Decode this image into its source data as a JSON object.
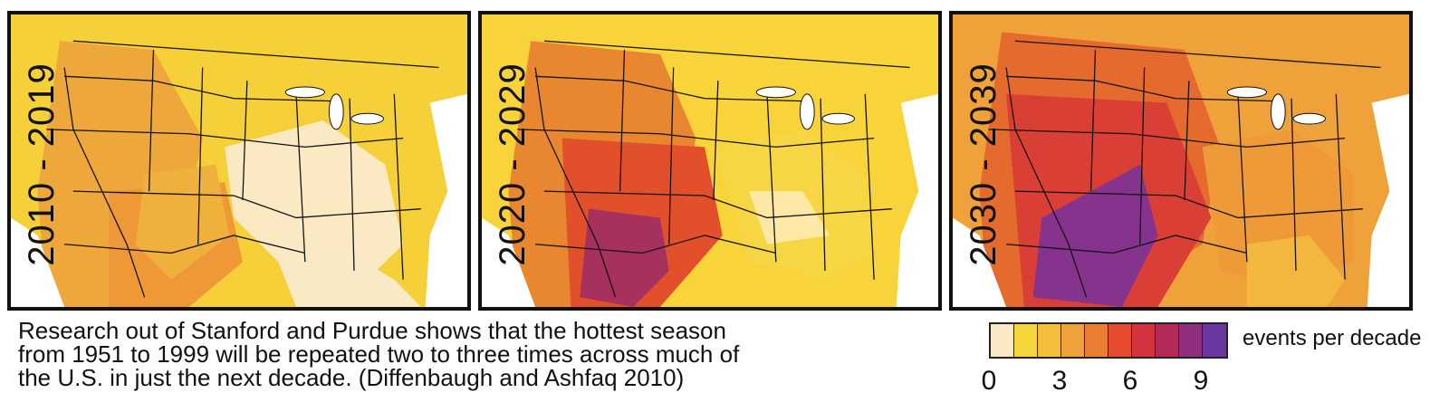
{
  "panels": [
    {
      "label": "2010 - 2019",
      "base": "#f6d039",
      "west": "#eea73b",
      "southwest": "#ee9838",
      "southeast": "#fbe9c3",
      "core": "#f0b03c",
      "coast": "#f9e9c4"
    },
    {
      "label": "2020 - 2029",
      "base": "#f8d33a",
      "west": "#e8872f",
      "southwest": "#e2502b",
      "southeast": "#f6d642",
      "core": "#a6315f",
      "coast": "#fde8a6"
    },
    {
      "label": "2030 - 2039",
      "base": "#f0a23a",
      "west": "#e46a2d",
      "southwest": "#d93f34",
      "southeast": "#ee9a38",
      "core": "#86338e",
      "coast": "#f4b73e"
    }
  ],
  "caption": {
    "line1": "Research out of Stanford and Purdue shows that the hottest season",
    "line2": "from 1951 to 1999 will be repeated two to three times across much of",
    "line3": "the U.S. in just the next decade. (Diffenbaugh and Ashfaq 2010)"
  },
  "legend": {
    "label": "events per decade",
    "colors": [
      "#fbe9c3",
      "#f7d63a",
      "#f5bd3c",
      "#f0a23a",
      "#ea7f33",
      "#e64a2f",
      "#d1343e",
      "#b32a57",
      "#8f2f7e",
      "#6b37a0"
    ],
    "ticks": [
      "0",
      "3",
      "6",
      "9"
    ]
  }
}
